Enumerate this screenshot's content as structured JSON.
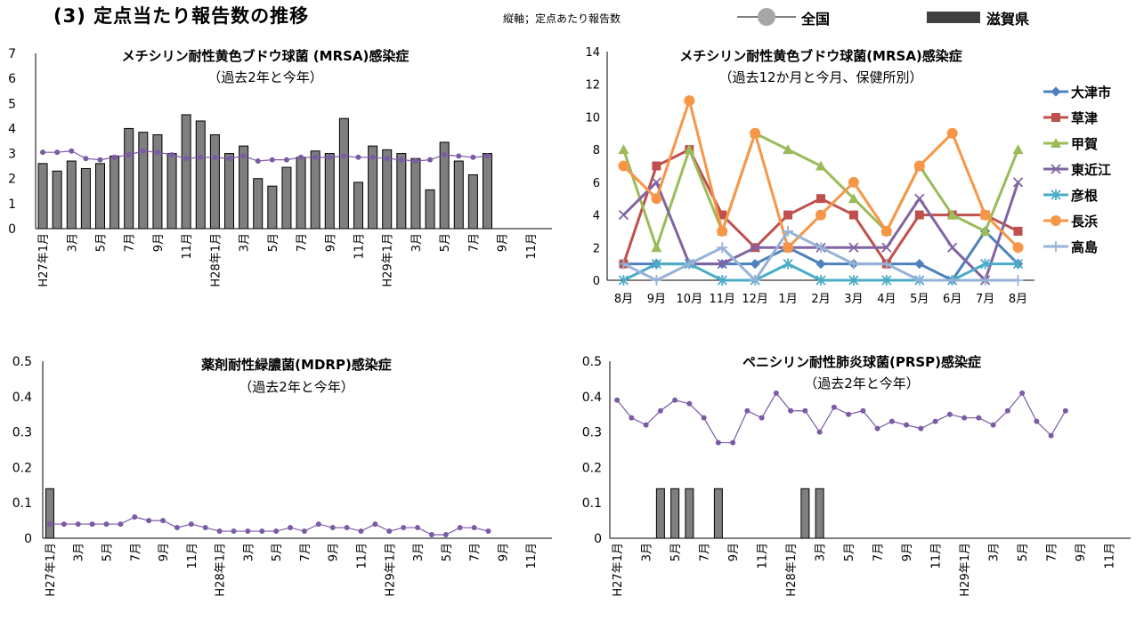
{
  "header": {
    "title": "(3)  定点当たり報告数の推移",
    "note": "縦軸；定点あたり報告数",
    "legend_national": "全国",
    "legend_pref": "滋賀県"
  },
  "colors": {
    "bar": "#7f7f7f",
    "line": "#7b5aa6",
    "series": [
      "#4f81bd",
      "#c0504d",
      "#9bbb59",
      "#8064a2",
      "#4bacc6",
      "#f79646",
      "#95b3d7"
    ]
  },
  "chart_data": [
    {
      "id": "mrsa",
      "type": "bar",
      "title": "メチシリン耐性黄色ブドウ球菌 (MRSA)感染症",
      "subtitle": "（過去2年と今年）",
      "ylim": [
        0,
        7
      ],
      "yticks": [
        "0",
        "1",
        "2",
        "3",
        "4",
        "5",
        "6",
        "7"
      ],
      "xticks": [
        "H27年1月",
        "3月",
        "5月",
        "7月",
        "9月",
        "11月",
        "H28年1月",
        "3月",
        "5月",
        "7月",
        "9月",
        "11月",
        "H29年1月",
        "3月",
        "5月",
        "7月",
        "9月",
        "11月"
      ],
      "series": [
        {
          "name": "滋賀県",
          "values": [
            2.6,
            2.3,
            2.7,
            2.4,
            2.6,
            2.9,
            4.0,
            3.85,
            3.75,
            3.0,
            4.55,
            4.3,
            3.75,
            3.0,
            3.3,
            2.0,
            1.7,
            2.45,
            2.85,
            3.1,
            3.0,
            4.4,
            1.85,
            3.3,
            3.15,
            3.0,
            2.8,
            1.55,
            3.45,
            2.7,
            2.15,
            3.0
          ]
        },
        {
          "name": "全国",
          "values": [
            3.05,
            3.05,
            3.1,
            2.8,
            2.75,
            2.85,
            2.95,
            3.1,
            3.05,
            2.95,
            2.8,
            2.85,
            2.85,
            2.8,
            2.9,
            2.7,
            2.75,
            2.75,
            2.85,
            2.85,
            2.85,
            2.9,
            2.85,
            2.85,
            2.8,
            2.75,
            2.7,
            2.75,
            2.95,
            2.9,
            2.85,
            2.9
          ]
        }
      ]
    },
    {
      "id": "mrsa-hc",
      "type": "line",
      "title": "メチシリン耐性黄色ブドウ球菌(MRSA)感染症",
      "subtitle": "（過去12か月と今月、保健所別）",
      "ylim": [
        0,
        14
      ],
      "yticks": [
        "0",
        "2",
        "4",
        "6",
        "8",
        "10",
        "12",
        "14"
      ],
      "categories": [
        "8月",
        "9月",
        "10月",
        "11月",
        "12月",
        "1月",
        "2月",
        "3月",
        "4月",
        "5月",
        "6月",
        "7月",
        "8月"
      ],
      "series": [
        {
          "name": "大津市",
          "values": [
            1,
            1,
            1,
            1,
            1,
            2,
            1,
            1,
            1,
            1,
            0,
            3,
            1
          ]
        },
        {
          "name": "草津",
          "values": [
            1,
            7,
            8,
            4,
            2,
            4,
            5,
            4,
            1,
            4,
            4,
            4,
            3
          ]
        },
        {
          "name": "甲賀",
          "values": [
            8,
            2,
            8,
            3,
            9,
            8,
            7,
            5,
            3,
            7,
            4,
            3,
            8
          ]
        },
        {
          "name": "東近江",
          "values": [
            4,
            6,
            1,
            1,
            2,
            2,
            2,
            2,
            2,
            5,
            2,
            0,
            6
          ]
        },
        {
          "name": "彦根",
          "values": [
            0,
            1,
            1,
            0,
            0,
            1,
            0,
            0,
            0,
            0,
            0,
            1,
            1
          ]
        },
        {
          "name": "長浜",
          "values": [
            7,
            5,
            11,
            3,
            9,
            2,
            4,
            6,
            3,
            7,
            9,
            4,
            2
          ]
        },
        {
          "name": "高島",
          "values": [
            1,
            0,
            1,
            2,
            0,
            3,
            2,
            1,
            1,
            0,
            0,
            0,
            0
          ]
        }
      ]
    },
    {
      "id": "mdrp",
      "type": "bar",
      "title": "薬剤耐性緑膿菌(MDRP)感染症",
      "subtitle": "（過去2年と今年）",
      "ylim": [
        0,
        0.5
      ],
      "yticks": [
        "0",
        "0.1",
        "0.2",
        "0.3",
        "0.4",
        "0.5"
      ],
      "xticks": [
        "H27年1月",
        "3月",
        "5月",
        "7月",
        "9月",
        "11月",
        "H28年1月",
        "3月",
        "5月",
        "7月",
        "9月",
        "11月",
        "H29年1月",
        "3月",
        "5月",
        "7月",
        "9月",
        "11月"
      ],
      "series": [
        {
          "name": "滋賀県",
          "values": [
            0.14,
            0,
            0,
            0,
            0,
            0,
            0,
            0,
            0,
            0,
            0,
            0,
            0,
            0,
            0,
            0,
            0,
            0,
            0,
            0,
            0,
            0,
            0,
            0,
            0,
            0,
            0,
            0,
            0,
            0,
            0,
            0
          ]
        },
        {
          "name": "全国",
          "values": [
            0.04,
            0.04,
            0.04,
            0.04,
            0.04,
            0.04,
            0.06,
            0.05,
            0.05,
            0.03,
            0.04,
            0.03,
            0.02,
            0.02,
            0.02,
            0.02,
            0.02,
            0.03,
            0.02,
            0.04,
            0.03,
            0.03,
            0.02,
            0.04,
            0.02,
            0.03,
            0.03,
            0.01,
            0.01,
            0.03,
            0.03,
            0.02
          ]
        }
      ]
    },
    {
      "id": "prsp",
      "type": "bar",
      "title": "ペニシリン耐性肺炎球菌(PRSP)感染症",
      "subtitle": "（過去2年と今年）",
      "ylim": [
        0,
        0.5
      ],
      "yticks": [
        "0",
        "0.1",
        "0.2",
        "0.3",
        "0.4",
        "0.5"
      ],
      "xticks": [
        "H27年1月",
        "3月",
        "5月",
        "7月",
        "9月",
        "11月",
        "H28年1月",
        "3月",
        "5月",
        "7月",
        "9月",
        "11月",
        "H29年1月",
        "3月",
        "5月",
        "7月",
        "9月",
        "11月"
      ],
      "series": [
        {
          "name": "滋賀県",
          "values": [
            0,
            0,
            0,
            0.14,
            0.14,
            0.14,
            0,
            0.14,
            0,
            0,
            0,
            0,
            0,
            0.14,
            0.14,
            0,
            0,
            0,
            0,
            0,
            0,
            0,
            0,
            0,
            0,
            0,
            0,
            0,
            0,
            0,
            0,
            0
          ]
        },
        {
          "name": "全国",
          "values": [
            0.39,
            0.34,
            0.32,
            0.36,
            0.39,
            0.38,
            0.34,
            0.27,
            0.27,
            0.36,
            0.34,
            0.41,
            0.36,
            0.36,
            0.3,
            0.37,
            0.35,
            0.36,
            0.31,
            0.33,
            0.32,
            0.31,
            0.33,
            0.35,
            0.34,
            0.34,
            0.32,
            0.36,
            0.41,
            0.33,
            0.29,
            0.36
          ]
        }
      ]
    }
  ]
}
